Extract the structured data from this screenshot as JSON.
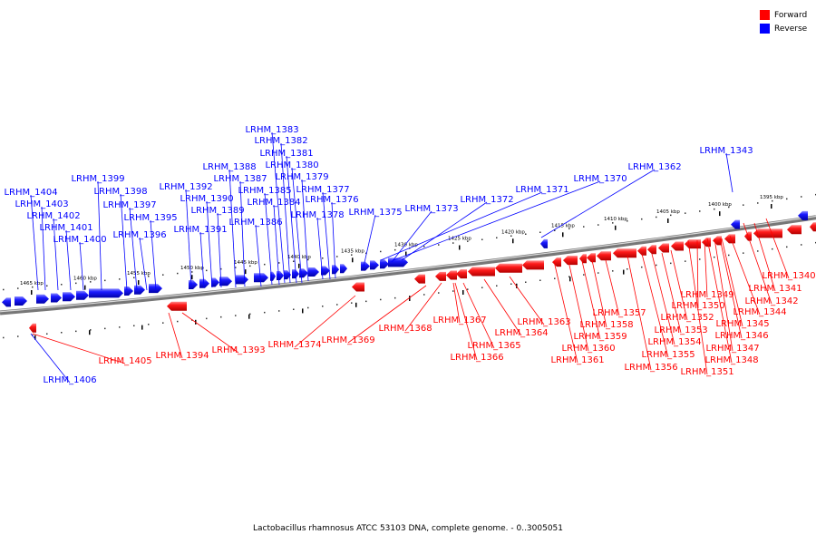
{
  "legend": {
    "forward_label": "Forward",
    "reverse_label": "Reverse",
    "forward_color": "#ff0000",
    "reverse_color": "#0000ff"
  },
  "caption": "Lactobacillus rhamnosus ATCC 53103 DNA, complete genome. - 0..3005051",
  "ticks": {
    "inner": [
      "1465 kbp",
      "1460 kbp",
      "1455 kbp",
      "1450 kbp",
      "1445 kbp",
      "1440 kbp",
      "1435 kbp",
      "1430 kbp",
      "1425 kbp",
      "1420 kbp",
      "1415 kbp",
      "1410 kbp",
      "1405 kbp",
      "1400 kbp",
      "1395 kbp"
    ]
  },
  "labels": {
    "reverse": [
      "LRHM_1404",
      "LRHM_1403",
      "LRHM_1402",
      "LRHM_1401",
      "LRHM_1400",
      "LRHM_1399",
      "LRHM_1398",
      "LRHM_1397",
      "LRHM_1396",
      "LRHM_1395",
      "LRHM_1392",
      "LRHM_1391",
      "LRHM_1390",
      "LRHM_1389",
      "LRHM_1388",
      "LRHM_1387",
      "LRHM_1386",
      "LRHM_1385",
      "LRHM_1384",
      "LRHM_1383",
      "LRHM_1382",
      "LRHM_1381",
      "LRHM_1380",
      "LRHM_1379",
      "LRHM_1378",
      "LRHM_1377",
      "LRHM_1376",
      "LRHM_1375",
      "LRHM_1373",
      "LRHM_1372",
      "LRHM_1371",
      "LRHM_1370",
      "LRHM_1362",
      "LRHM_1343",
      "LRHM_1406"
    ],
    "forward": [
      "LRHM_1405",
      "LRHM_1394",
      "LRHM_1393",
      "LRHM_1374",
      "LRHM_1369",
      "LRHM_1368",
      "LRHM_1367",
      "LRHM_1366",
      "LRHM_1365",
      "LRHM_1364",
      "LRHM_1363",
      "LRHM_1361",
      "LRHM_1360",
      "LRHM_1359",
      "LRHM_1358",
      "LRHM_1357",
      "LRHM_1356",
      "LRHM_1355",
      "LRHM_1354",
      "LRHM_1353",
      "LRHM_1352",
      "LRHM_1351",
      "LRHM_1350",
      "LRHM_1349",
      "LRHM_1348",
      "LRHM_1347",
      "LRHM_1346",
      "LRHM_1345",
      "LRHM_1344",
      "LRHM_1342",
      "LRHM_1341",
      "LRHM_1340"
    ]
  }
}
